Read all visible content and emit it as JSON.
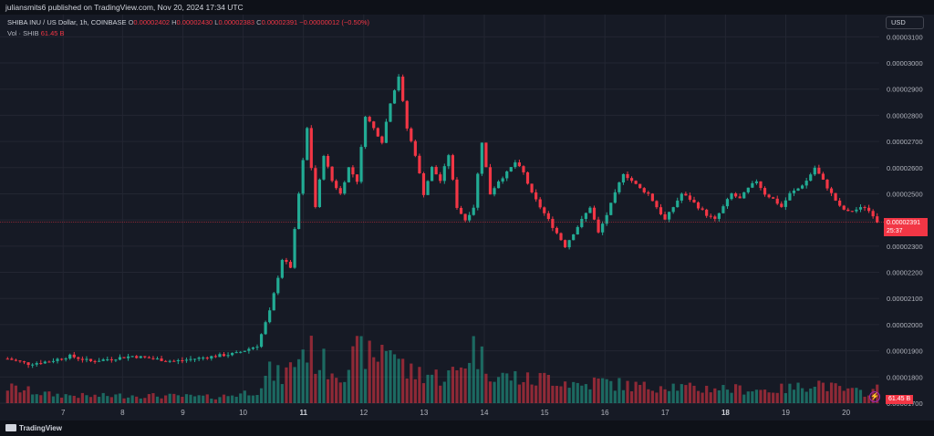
{
  "header": {
    "published": "juliansmits6 published on TradingView.com, Nov 20, 2024 17:34 UTC"
  },
  "legend": {
    "symbol": "SHIBA INU / US Dollar, 1h, COINBASE",
    "open_label": "O",
    "open": "0.00002402",
    "high_label": "H",
    "high": "0.00002430",
    "low_label": "L",
    "low": "0.00002383",
    "close_label": "C",
    "close": "0.00002391",
    "change": "−0.00000012 (−0.50%)",
    "vol_label": "Vol · SHIB",
    "vol_value": "61.45 B"
  },
  "currency_button": "USD",
  "price_tag": {
    "value": "0.00002391",
    "countdown": "25:37"
  },
  "volume_tag": "61.45 B",
  "footer": {
    "brand": "TradingView"
  },
  "colors": {
    "up": "#22ab94",
    "down": "#f23645",
    "background": "#161a25",
    "grid": "#232632"
  },
  "chart_data": {
    "type": "candlestick",
    "ylim": [
      1.7e-05,
      3.15e-05
    ],
    "y_ticks": [
      "0.00003100",
      "0.00003000",
      "0.00002900",
      "0.00002800",
      "0.00002700",
      "0.00002600",
      "0.00002500",
      "0.00002400",
      "0.00002300",
      "0.00002200",
      "0.00002100",
      "0.00002000",
      "0.00001900",
      "0.00001800",
      "0.00001700"
    ],
    "x_ticks": [
      {
        "label": "7",
        "pos": 0.066,
        "bold": false
      },
      {
        "label": "8",
        "pos": 0.134,
        "bold": false
      },
      {
        "label": "9",
        "pos": 0.203,
        "bold": false
      },
      {
        "label": "10",
        "pos": 0.272,
        "bold": false
      },
      {
        "label": "11",
        "pos": 0.341,
        "bold": true
      },
      {
        "label": "12",
        "pos": 0.41,
        "bold": false
      },
      {
        "label": "13",
        "pos": 0.479,
        "bold": false
      },
      {
        "label": "14",
        "pos": 0.548,
        "bold": false
      },
      {
        "label": "15",
        "pos": 0.617,
        "bold": false
      },
      {
        "label": "16",
        "pos": 0.686,
        "bold": false
      },
      {
        "label": "17",
        "pos": 0.755,
        "bold": false
      },
      {
        "label": "18",
        "pos": 0.824,
        "bold": true
      },
      {
        "label": "19",
        "pos": 0.893,
        "bold": false
      },
      {
        "label": "20",
        "pos": 0.962,
        "bold": false
      }
    ],
    "last_price": 2.391e-05,
    "close_anchors": [
      [
        0,
        1.87
      ],
      [
        5,
        1.85
      ],
      [
        10,
        1.86
      ],
      [
        15,
        1.88
      ],
      [
        20,
        1.86
      ],
      [
        25,
        1.87
      ],
      [
        30,
        1.88
      ],
      [
        35,
        1.87
      ],
      [
        40,
        1.86
      ],
      [
        45,
        1.87
      ],
      [
        50,
        1.88
      ],
      [
        55,
        1.89
      ],
      [
        60,
        1.92
      ],
      [
        63,
        2.05
      ],
      [
        66,
        2.25
      ],
      [
        68,
        2.22
      ],
      [
        70,
        2.5
      ],
      [
        72,
        2.75
      ],
      [
        74,
        2.45
      ],
      [
        76,
        2.65
      ],
      [
        78,
        2.55
      ],
      [
        80,
        2.5
      ],
      [
        82,
        2.6
      ],
      [
        84,
        2.55
      ],
      [
        86,
        2.8
      ],
      [
        88,
        2.75
      ],
      [
        90,
        2.7
      ],
      [
        92,
        2.85
      ],
      [
        94,
        2.95
      ],
      [
        96,
        2.75
      ],
      [
        98,
        2.65
      ],
      [
        100,
        2.5
      ],
      [
        102,
        2.6
      ],
      [
        104,
        2.55
      ],
      [
        106,
        2.65
      ],
      [
        108,
        2.45
      ],
      [
        110,
        2.4
      ],
      [
        112,
        2.45
      ],
      [
        114,
        2.7
      ],
      [
        116,
        2.5
      ],
      [
        118,
        2.55
      ],
      [
        120,
        2.58
      ],
      [
        122,
        2.62
      ],
      [
        124,
        2.58
      ],
      [
        126,
        2.5
      ],
      [
        128,
        2.45
      ],
      [
        130,
        2.4
      ],
      [
        132,
        2.35
      ],
      [
        134,
        2.3
      ],
      [
        136,
        2.35
      ],
      [
        138,
        2.4
      ],
      [
        140,
        2.45
      ],
      [
        142,
        2.35
      ],
      [
        144,
        2.42
      ],
      [
        146,
        2.5
      ],
      [
        148,
        2.58
      ],
      [
        150,
        2.55
      ],
      [
        152,
        2.52
      ],
      [
        154,
        2.5
      ],
      [
        156,
        2.45
      ],
      [
        158,
        2.4
      ],
      [
        160,
        2.45
      ],
      [
        162,
        2.5
      ],
      [
        164,
        2.48
      ],
      [
        166,
        2.45
      ],
      [
        168,
        2.42
      ],
      [
        170,
        2.4
      ],
      [
        172,
        2.45
      ],
      [
        174,
        2.5
      ],
      [
        176,
        2.48
      ],
      [
        178,
        2.52
      ],
      [
        180,
        2.55
      ],
      [
        182,
        2.5
      ],
      [
        184,
        2.48
      ],
      [
        186,
        2.45
      ],
      [
        188,
        2.5
      ],
      [
        190,
        2.52
      ],
      [
        192,
        2.55
      ],
      [
        194,
        2.6
      ],
      [
        196,
        2.55
      ],
      [
        198,
        2.5
      ],
      [
        200,
        2.45
      ],
      [
        202,
        2.43
      ],
      [
        204,
        2.44
      ],
      [
        206,
        2.45
      ],
      [
        208,
        2.42
      ],
      [
        209,
        2.391
      ]
    ],
    "volume_anchors": [
      [
        0,
        0.18
      ],
      [
        10,
        0.1
      ],
      [
        20,
        0.08
      ],
      [
        30,
        0.09
      ],
      [
        40,
        0.08
      ],
      [
        50,
        0.07
      ],
      [
        55,
        0.1
      ],
      [
        60,
        0.15
      ],
      [
        63,
        0.35
      ],
      [
        66,
        0.3
      ],
      [
        68,
        0.4
      ],
      [
        70,
        0.55
      ],
      [
        72,
        0.65
      ],
      [
        74,
        0.5
      ],
      [
        76,
        0.45
      ],
      [
        80,
        0.35
      ],
      [
        84,
        0.55
      ],
      [
        86,
        0.6
      ],
      [
        88,
        0.45
      ],
      [
        90,
        0.65
      ],
      [
        92,
        0.7
      ],
      [
        94,
        0.5
      ],
      [
        96,
        0.35
      ],
      [
        100,
        0.35
      ],
      [
        104,
        0.3
      ],
      [
        108,
        0.35
      ],
      [
        112,
        0.65
      ],
      [
        114,
        0.5
      ],
      [
        118,
        0.3
      ],
      [
        122,
        0.3
      ],
      [
        126,
        0.25
      ],
      [
        130,
        0.3
      ],
      [
        134,
        0.25
      ],
      [
        138,
        0.2
      ],
      [
        142,
        0.25
      ],
      [
        146,
        0.22
      ],
      [
        150,
        0.2
      ],
      [
        154,
        0.18
      ],
      [
        158,
        0.22
      ],
      [
        162,
        0.18
      ],
      [
        166,
        0.16
      ],
      [
        170,
        0.18
      ],
      [
        174,
        0.16
      ],
      [
        178,
        0.16
      ],
      [
        182,
        0.15
      ],
      [
        186,
        0.16
      ],
      [
        190,
        0.18
      ],
      [
        194,
        0.25
      ],
      [
        198,
        0.18
      ],
      [
        202,
        0.14
      ],
      [
        206,
        0.12
      ],
      [
        209,
        0.16
      ]
    ],
    "candle_count": 210,
    "range_x": [
      0,
      209
    ]
  }
}
